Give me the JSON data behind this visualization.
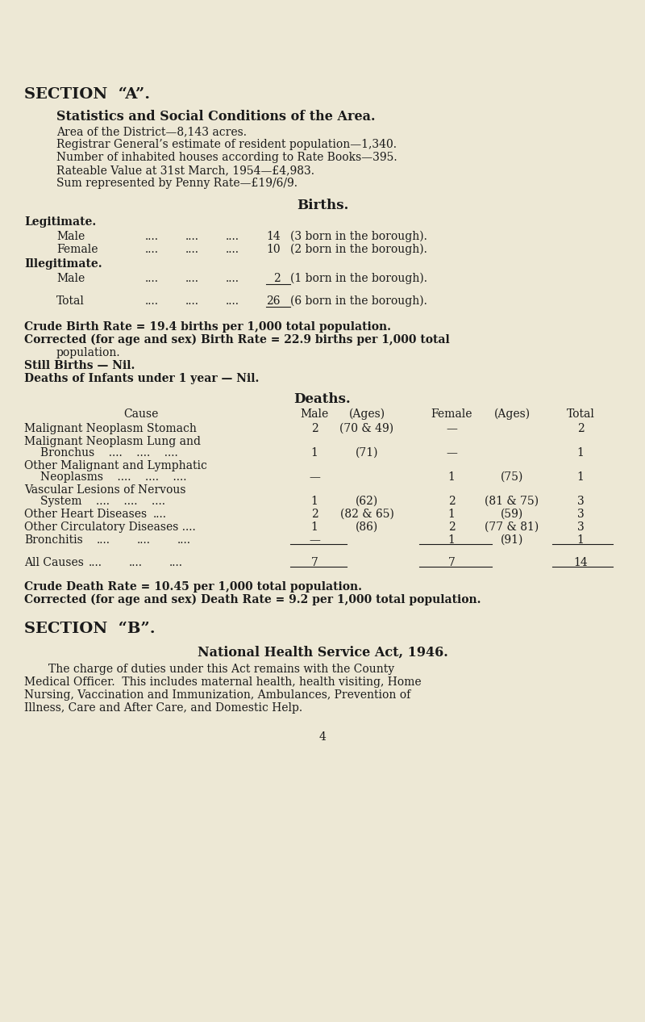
{
  "bg_color": "#ede8d5",
  "text_color": "#1a1a1a",
  "section_a": "SECTION  “A”.",
  "subtitle": "Statistics and Social Conditions of the Area.",
  "area": "Area of the District—8,143 acres.",
  "population": "Registrar General’s estimate of resident population—1,340.",
  "houses": "Number of inhabited houses according to Rate Books—395.",
  "rateable": "Rateable Value at 31st March, 1954—£4,983.",
  "penny_rate": "Sum represented by Penny Rate—£19/6/9.",
  "births_heading": "Births.",
  "legitimate_heading": "Legitimate.",
  "illegitimate_heading": "Illegitimate.",
  "crude_birth": "Crude Birth Rate = 19.4 births per 1,000 total population.",
  "corrected_birth_1": "Corrected (for age and sex) Birth Rate = 22.9 births per 1,000 total",
  "corrected_birth_2": "population.",
  "still_births": "Still Births — Nil.",
  "deaths_infants": "Deaths of Infants under 1 year — Nil.",
  "deaths_heading": "Deaths.",
  "crude_death": "Crude Death Rate = 10.45 per 1,000 total population.",
  "corrected_death": "Corrected (for age and sex) Death Rate = 9.2 per 1,000 total population.",
  "section_b": "SECTION  “B”.",
  "nhs_heading": "National Health Service Act, 1946.",
  "nhs_text_1": "The charge of duties under this Act remains with the County",
  "nhs_text_2": "Medical Officer.  This includes maternal health, health visiting, Home",
  "nhs_text_3": "Nursing, Vaccination and Immunization, Ambulances, Prevention of",
  "nhs_text_4": "Illness, Care and After Care, and Domestic Help.",
  "page_num": "4"
}
